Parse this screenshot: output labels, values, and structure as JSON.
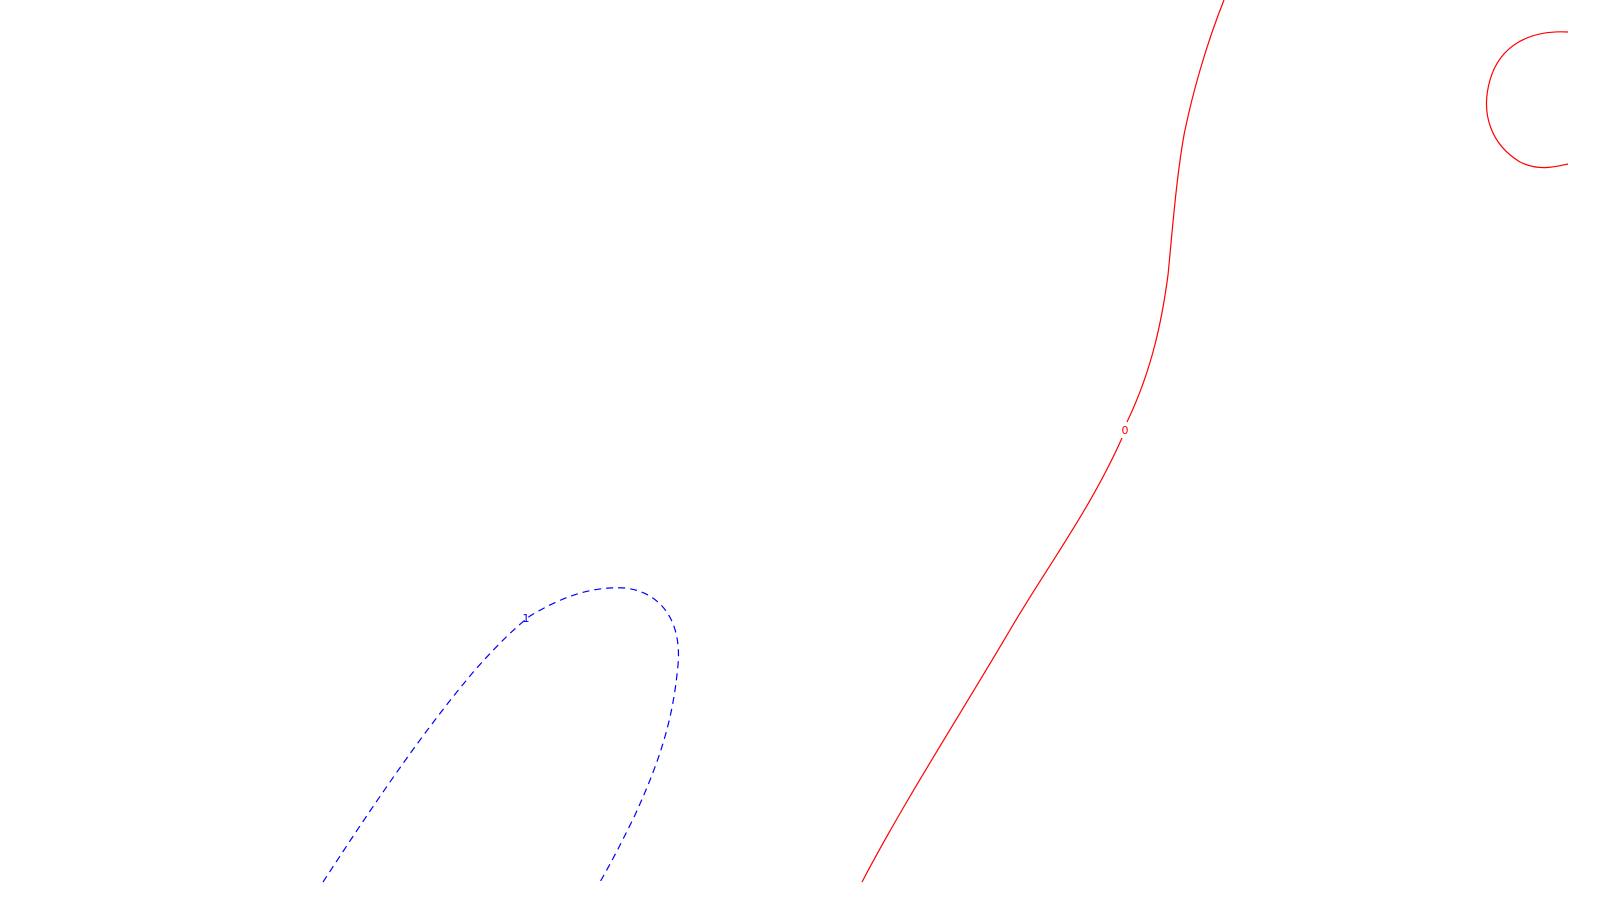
{
  "contours": {
    "zero_level": {
      "label": "0",
      "color": "#ff0000",
      "line_style": "solid"
    },
    "one_level": {
      "label": "1",
      "color": "#0000ff",
      "line_style": "dashed"
    }
  }
}
